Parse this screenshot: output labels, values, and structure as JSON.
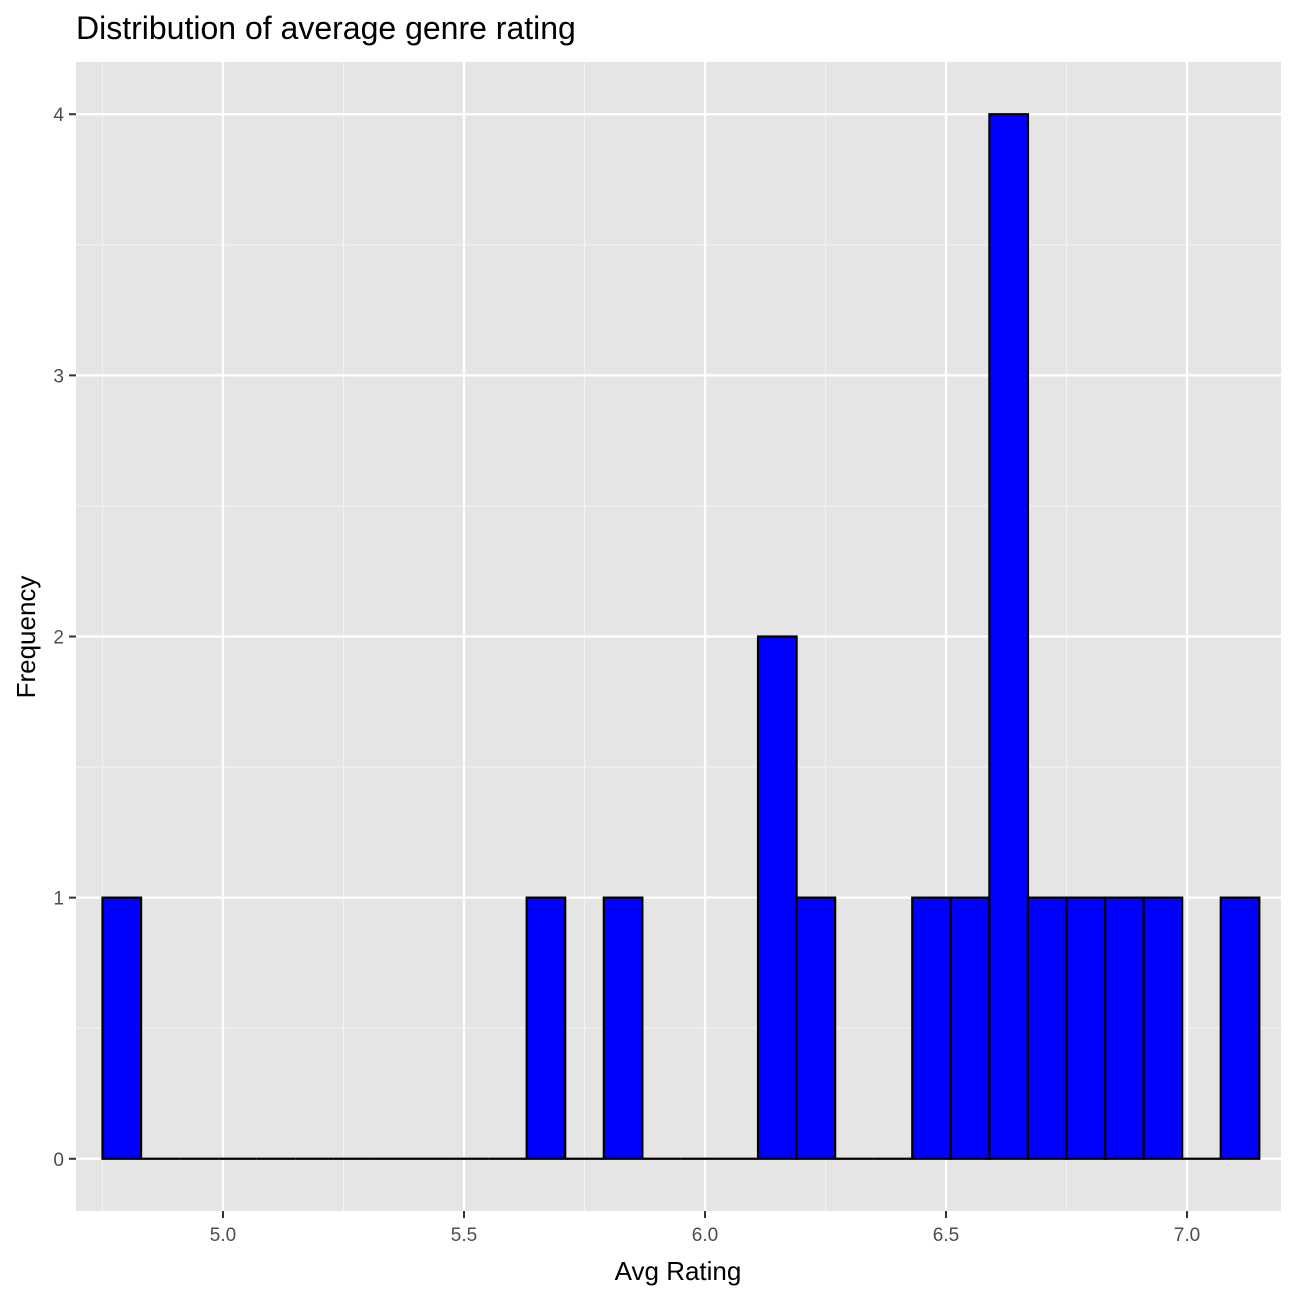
{
  "chart_data": {
    "type": "bar",
    "subtype": "histogram",
    "title": "Distribution of average genre rating",
    "xlabel": "Avg Rating",
    "ylabel": "Frequency",
    "xlim": [
      4.695,
      7.195
    ],
    "ylim": [
      -0.2,
      4.2
    ],
    "x_ticks": [
      5.0,
      5.5,
      6.0,
      6.5,
      7.0
    ],
    "x_tick_labels": [
      "5.0",
      "5.5",
      "6.0",
      "6.5",
      "7.0"
    ],
    "y_ticks": [
      0,
      1,
      2,
      3,
      4
    ],
    "y_tick_labels": [
      "0",
      "1",
      "2",
      "3",
      "4"
    ],
    "grid": true,
    "legend": "none",
    "bin_width": 0.08,
    "bins": [
      {
        "x0": 4.75,
        "x1": 4.83,
        "count": 1
      },
      {
        "x0": 4.83,
        "x1": 4.91,
        "count": 0
      },
      {
        "x0": 4.91,
        "x1": 4.99,
        "count": 0
      },
      {
        "x0": 4.99,
        "x1": 5.07,
        "count": 0
      },
      {
        "x0": 5.07,
        "x1": 5.15,
        "count": 0
      },
      {
        "x0": 5.15,
        "x1": 5.23,
        "count": 0
      },
      {
        "x0": 5.23,
        "x1": 5.31,
        "count": 0
      },
      {
        "x0": 5.31,
        "x1": 5.39,
        "count": 0
      },
      {
        "x0": 5.39,
        "x1": 5.47,
        "count": 0
      },
      {
        "x0": 5.47,
        "x1": 5.55,
        "count": 0
      },
      {
        "x0": 5.55,
        "x1": 5.63,
        "count": 0
      },
      {
        "x0": 5.63,
        "x1": 5.71,
        "count": 1
      },
      {
        "x0": 5.71,
        "x1": 5.79,
        "count": 0
      },
      {
        "x0": 5.79,
        "x1": 5.87,
        "count": 1
      },
      {
        "x0": 5.87,
        "x1": 5.95,
        "count": 0
      },
      {
        "x0": 5.95,
        "x1": 6.03,
        "count": 0
      },
      {
        "x0": 6.03,
        "x1": 6.11,
        "count": 0
      },
      {
        "x0": 6.11,
        "x1": 6.19,
        "count": 2
      },
      {
        "x0": 6.19,
        "x1": 6.27,
        "count": 1
      },
      {
        "x0": 6.27,
        "x1": 6.35,
        "count": 0
      },
      {
        "x0": 6.35,
        "x1": 6.43,
        "count": 0
      },
      {
        "x0": 6.43,
        "x1": 6.51,
        "count": 1
      },
      {
        "x0": 6.51,
        "x1": 6.59,
        "count": 1
      },
      {
        "x0": 6.59,
        "x1": 6.67,
        "count": 4
      },
      {
        "x0": 6.67,
        "x1": 6.75,
        "count": 1
      },
      {
        "x0": 6.75,
        "x1": 6.83,
        "count": 1
      },
      {
        "x0": 6.83,
        "x1": 6.91,
        "count": 1
      },
      {
        "x0": 6.91,
        "x1": 6.99,
        "count": 1
      },
      {
        "x0": 6.99,
        "x1": 7.07,
        "count": 0
      },
      {
        "x0": 7.07,
        "x1": 7.15,
        "count": 1
      }
    ],
    "colors": {
      "bar_fill": "#0000ff",
      "bar_outline": "#000000",
      "panel_background": "#e5e5e5",
      "grid_major": "#ffffff",
      "grid_minor": "#f2f2f2",
      "tick_text": "#4d4d4d",
      "title_text": "#000000"
    }
  }
}
